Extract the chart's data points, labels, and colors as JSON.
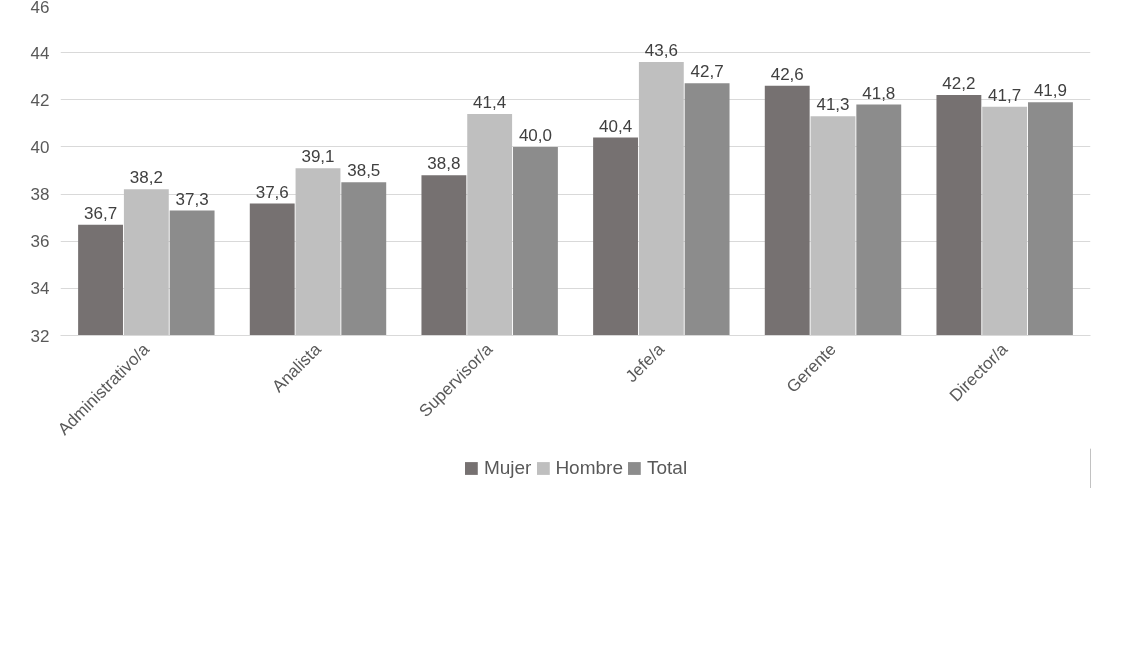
{
  "chart_data": {
    "type": "bar",
    "categories": [
      "Administrativo/a",
      "Analista",
      "Supervisor/a",
      "Jefe/a",
      "Gerente",
      "Director/a"
    ],
    "series": [
      {
        "name": "Mujer",
        "color": "#767171",
        "values": [
          36.7,
          37.6,
          38.8,
          40.4,
          42.6,
          42.2
        ],
        "value_labels": [
          "36,7",
          "37,6",
          "38,8",
          "40,4",
          "42,6",
          "42,2"
        ]
      },
      {
        "name": "Hombre",
        "color": "#bfbfbf",
        "values": [
          38.2,
          39.1,
          41.4,
          43.6,
          41.3,
          41.7
        ],
        "value_labels": [
          "38,2",
          "39,1",
          "41,4",
          "43,6",
          "41,3",
          "41,7"
        ]
      },
      {
        "name": "Total",
        "color": "#8c8c8c",
        "values": [
          37.3,
          38.5,
          40.0,
          42.7,
          41.8,
          41.9
        ],
        "value_labels": [
          "37,3",
          "38,5",
          "40,0",
          "42,7",
          "41,8",
          "41,9"
        ]
      }
    ],
    "ylim": [
      32,
      46
    ],
    "yticks": [
      32,
      34,
      36,
      38,
      40,
      42,
      44,
      46
    ],
    "grid": "y",
    "legend": "bottom"
  }
}
